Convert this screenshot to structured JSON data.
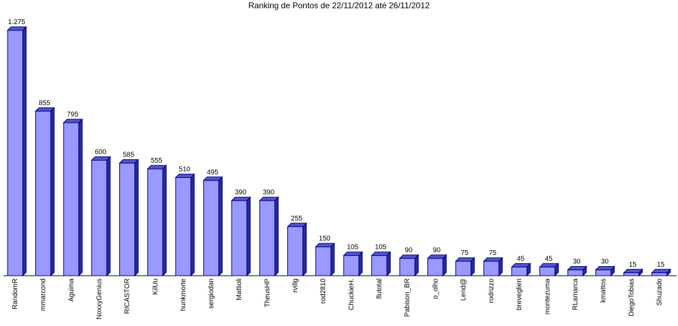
{
  "chart_data": {
    "type": "bar",
    "title": "Ranking de Pontos de 22/11/2012 até 26/11/2012",
    "categories": [
      "RandomR",
      "mmarcond",
      "Aguima",
      "NoxxyGenius",
      "RICASTOR",
      "KilUu",
      "hunkmorte",
      "sergiodan",
      "Mattioli",
      "TheusHP",
      "rvillg",
      "rod2810",
      "ChuckieH.",
      "flutotal",
      "Pabison_BR",
      "o_olho",
      "Lend@",
      "rodrizzo",
      "breveglieri",
      "montezuma",
      "RLamarca",
      "kmattos",
      "DiegoTobias",
      "Shuzado"
    ],
    "values": [
      1275,
      855,
      795,
      600,
      585,
      555,
      510,
      495,
      390,
      390,
      255,
      150,
      105,
      105,
      90,
      90,
      75,
      75,
      45,
      45,
      30,
      30,
      15,
      15
    ],
    "value_labels": [
      "1.275",
      "855",
      "795",
      "600",
      "585",
      "555",
      "510",
      "495",
      "390",
      "390",
      "255",
      "150",
      "105",
      "105",
      "90",
      "90",
      "75",
      "75",
      "45",
      "45",
      "30",
      "30",
      "15",
      "15"
    ],
    "color": "#9999ff"
  }
}
